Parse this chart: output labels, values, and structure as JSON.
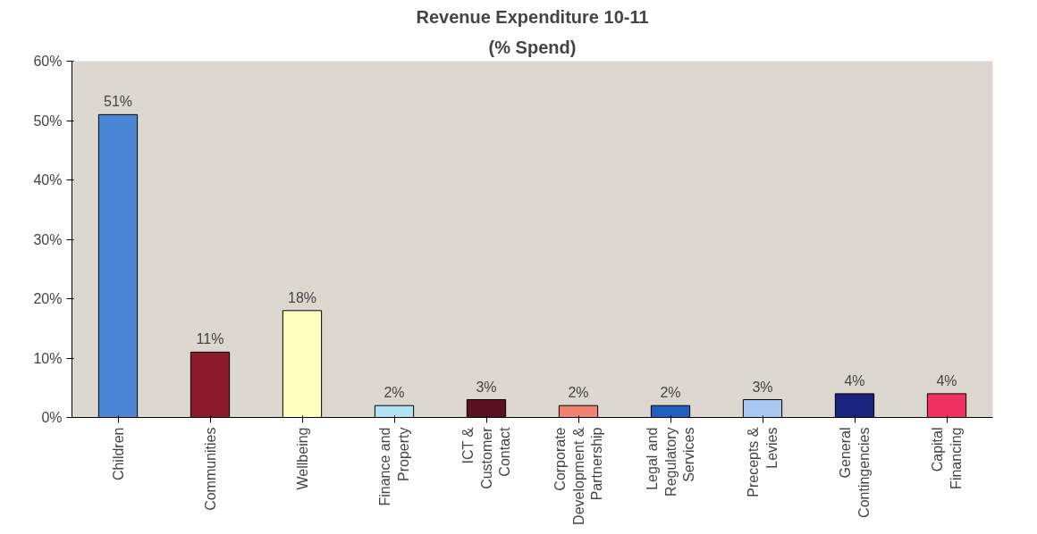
{
  "chart_data": {
    "type": "bar",
    "title": "Revenue Expenditure 10-11",
    "subtitle": "(% Spend)",
    "categories": [
      "Children",
      "Communities",
      "Wellbeing",
      "Finance and Property",
      "ICT & Customer Contact",
      "Corporate Development & Partnership",
      "Legal and Regulatory Services",
      "Precepts & Levies",
      "General Contingencies",
      "Capital Financing"
    ],
    "values": [
      51,
      11,
      18,
      2,
      3,
      2,
      2,
      3,
      4,
      4
    ],
    "colors": [
      "#4a86d4",
      "#8b1a2a",
      "#ffffc0",
      "#b0e4f4",
      "#5a1020",
      "#f08070",
      "#1f5fbf",
      "#a8c8f0",
      "#1a237e",
      "#f03060"
    ],
    "ylim": [
      0,
      60
    ],
    "yticks": [
      {
        "value": 0,
        "label": "0%"
      },
      {
        "value": 10,
        "label": "10%"
      },
      {
        "value": 20,
        "label": "20%"
      },
      {
        "value": 30,
        "label": "30%"
      },
      {
        "value": 40,
        "label": "40%"
      },
      {
        "value": 50,
        "label": "50%"
      },
      {
        "value": 60,
        "label": "60%"
      }
    ],
    "value_labels": [
      "51%",
      "11%",
      "18%",
      "2%",
      "3%",
      "2%",
      "2%",
      "3%",
      "4%",
      "4%"
    ],
    "grid": false
  }
}
